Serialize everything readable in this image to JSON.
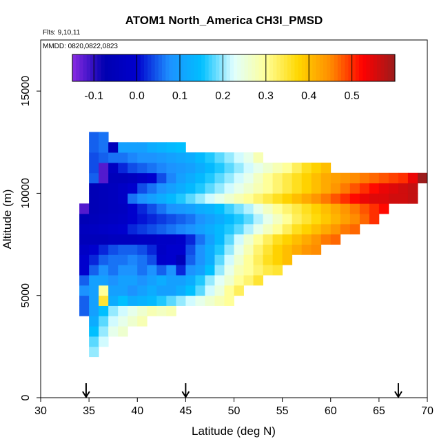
{
  "chart_data": {
    "type": "heatmap",
    "title": "ATOM1 North_America CH3I_PMSD",
    "subtitle_flights": "Flts: 9,10,11",
    "subtitle_dates": "MMDD: 0820,0822,0823",
    "xlabel": "Latitude (deg N)",
    "ylabel": "Altitude (m)",
    "xlim": [
      30,
      70
    ],
    "ylim": [
      0,
      17500
    ],
    "x_ticks": [
      "30",
      "35",
      "40",
      "45",
      "50",
      "55",
      "60",
      "65",
      "70"
    ],
    "y_ticks": [
      "0",
      "5000",
      "10000",
      "15000"
    ],
    "colorbar": {
      "range": [
        -0.15,
        0.6
      ],
      "tick_labels": [
        "-0.1",
        "0.0",
        "0.1",
        "0.2",
        "0.3",
        "0.4",
        "0.5"
      ],
      "tick_values": [
        -0.1,
        0.0,
        0.1,
        0.2,
        0.3,
        0.4,
        0.5
      ],
      "colors": [
        "#8a2be2",
        "#0000b0",
        "#0000cd",
        "#1e90ff",
        "#00bfff",
        "#e0ffff",
        "#ffff99",
        "#ffd700",
        "#ff8c00",
        "#ff0000",
        "#9b1c1c"
      ]
    },
    "arrow_latitudes": [
      34.7,
      45,
      67
    ],
    "cell_size": {
      "lat": 1,
      "alt": 500
    },
    "altitude_rows": [
      {
        "alt_min": 2000,
        "lat_start": 35,
        "values": [
          0.2
        ]
      },
      {
        "alt_min": 2500,
        "lat_start": 35,
        "values": [
          0.18,
          0.22
        ]
      },
      {
        "alt_min": 3000,
        "lat_start": 35,
        "values": [
          0.15,
          0.2,
          0.24,
          0.26
        ]
      },
      {
        "alt_min": 3500,
        "lat_start": 35,
        "values": [
          0.12,
          0.18,
          0.22,
          0.24,
          0.26,
          0.28
        ]
      },
      {
        "alt_min": 4000,
        "lat_start": 34,
        "values": [
          0.05,
          0.1,
          0.15,
          0.2,
          0.22,
          0.24,
          0.26,
          0.28,
          0.27,
          0.28
        ]
      },
      {
        "alt_min": 4500,
        "lat_start": 34,
        "values": [
          0.05,
          0.1,
          0.35,
          0.12,
          0.15,
          0.12,
          0.13,
          0.14,
          0.16,
          0.18,
          0.2,
          0.22,
          0.24,
          0.26,
          0.28,
          0.3
        ]
      },
      {
        "alt_min": 5000,
        "lat_start": 34,
        "values": [
          0.08,
          0.1,
          0.3,
          0.1,
          0.1,
          0.08,
          0.1,
          0.12,
          0.1,
          0.1,
          0.12,
          0.15,
          0.18,
          0.22,
          0.25,
          0.3,
          0.33
        ]
      },
      {
        "alt_min": 5500,
        "lat_start": 34,
        "values": [
          0.05,
          0.1,
          0.1,
          0.08,
          0.1,
          0.1,
          0.08,
          0.1,
          0.12,
          0.1,
          0.1,
          0.12,
          0.16,
          0.2,
          0.23,
          0.26,
          0.3,
          0.32,
          0.35
        ]
      },
      {
        "alt_min": 6000,
        "lat_start": 34,
        "values": [
          0.0,
          0.05,
          0.08,
          0.06,
          0.08,
          0.08,
          0.06,
          0.08,
          0.05,
          0.08,
          0.02,
          0.08,
          0.1,
          0.15,
          0.2,
          0.24,
          0.28,
          0.3,
          0.32,
          0.34,
          0.35
        ]
      },
      {
        "alt_min": 6500,
        "lat_start": 34,
        "values": [
          0.0,
          0.02,
          0.05,
          0.06,
          0.06,
          0.07,
          0.06,
          0.04,
          -0.01,
          0.0,
          -0.05,
          0.05,
          0.08,
          0.12,
          0.18,
          0.22,
          0.26,
          0.3,
          0.33,
          0.36,
          0.38,
          0.4
        ]
      },
      {
        "alt_min": 7000,
        "lat_start": 34,
        "values": [
          -0.02,
          0.0,
          0.02,
          0.04,
          0.05,
          0.05,
          0.04,
          0.02,
          -0.02,
          0.0,
          0.0,
          0.04,
          0.08,
          0.12,
          0.16,
          0.2,
          0.24,
          0.28,
          0.32,
          0.35,
          0.38,
          0.4,
          0.42,
          0.44,
          0.45
        ]
      },
      {
        "alt_min": 7500,
        "lat_start": 34,
        "values": [
          -0.05,
          -0.05,
          -0.05,
          -0.04,
          -0.04,
          -0.04,
          -0.03,
          -0.03,
          -0.02,
          -0.02,
          -0.01,
          0.02,
          0.06,
          0.1,
          0.14,
          0.18,
          0.22,
          0.26,
          0.3,
          0.33,
          0.36,
          0.38,
          0.4,
          0.42,
          0.44,
          0.46,
          0.47
        ]
      },
      {
        "alt_min": 8000,
        "lat_start": 34,
        "values": [
          -0.04,
          -0.03,
          -0.02,
          -0.01,
          0.0,
          0.02,
          0.03,
          0.04,
          0.05,
          0.06,
          0.07,
          0.08,
          0.1,
          0.12,
          0.14,
          0.16,
          0.18,
          0.21,
          0.24,
          0.27,
          0.3,
          0.33,
          0.36,
          0.38,
          0.4,
          0.42,
          0.44,
          0.46,
          0.47
        ]
      },
      {
        "alt_min": 8500,
        "lat_start": 34,
        "values": [
          -0.06,
          -0.05,
          -0.04,
          -0.03,
          -0.02,
          0.0,
          0.01,
          0.02,
          0.03,
          0.04,
          0.05,
          0.06,
          0.08,
          0.1,
          0.12,
          0.14,
          0.16,
          0.18,
          0.21,
          0.24,
          0.27,
          0.3,
          0.33,
          0.35,
          0.37,
          0.39,
          0.41,
          0.43,
          0.45,
          0.47,
          0.5
        ]
      },
      {
        "alt_min": 9000,
        "lat_start": 34,
        "values": [
          -0.12,
          -0.06,
          -0.05,
          -0.04,
          -0.03,
          0.0,
          0.02,
          0.04,
          0.06,
          0.08,
          0.09,
          0.1,
          0.12,
          0.13,
          0.15,
          0.17,
          0.19,
          0.21,
          0.24,
          0.27,
          0.3,
          0.32,
          0.34,
          0.36,
          0.38,
          0.4,
          0.42,
          0.44,
          0.46,
          0.48,
          0.5,
          0.52
        ]
      },
      {
        "alt_min": 9500,
        "lat_start": 35,
        "values": [
          -0.06,
          -0.05,
          -0.04,
          -0.02,
          0.06,
          0.08,
          0.1,
          0.12,
          0.14,
          0.16,
          0.18,
          0.2,
          0.22,
          0.24,
          0.26,
          0.28,
          0.3,
          0.32,
          0.34,
          0.36,
          0.38,
          0.4,
          0.42,
          0.44,
          0.46,
          0.48,
          0.5,
          0.52,
          0.54,
          0.55,
          0.55,
          0.56,
          0.56,
          0.57
        ]
      },
      {
        "alt_min": 10000,
        "lat_start": 35,
        "values": [
          -0.06,
          -0.05,
          -0.04,
          -0.02,
          0.0,
          0.04,
          0.06,
          0.08,
          0.1,
          0.12,
          0.14,
          0.16,
          0.18,
          0.2,
          0.22,
          0.24,
          0.26,
          0.28,
          0.3,
          0.32,
          0.34,
          0.36,
          0.38,
          0.4,
          0.42,
          0.44,
          0.46,
          0.48,
          0.5,
          0.52,
          0.54,
          0.55,
          0.56,
          0.57
        ]
      },
      {
        "alt_min": 10500,
        "lat_start": 35,
        "values": [
          0.05,
          -0.12,
          -0.05,
          -0.05,
          -0.04,
          -0.02,
          0.0,
          0.04,
          0.07,
          0.1,
          0.12,
          0.14,
          0.16,
          0.18,
          0.2,
          0.22,
          0.24,
          0.27,
          0.3,
          0.32,
          0.34,
          0.36,
          0.38,
          0.4,
          0.42,
          0.43,
          0.44,
          0.45,
          0.46,
          0.47,
          0.48,
          0.49,
          0.5,
          0.54,
          0.6
        ]
      },
      {
        "alt_min": 11000,
        "lat_start": 35,
        "values": [
          0.04,
          -0.12,
          -0.03,
          0.02,
          0.04,
          0.05,
          0.06,
          0.07,
          0.08,
          0.09,
          0.1,
          0.12,
          0.14,
          0.16,
          0.18,
          0.2,
          0.22,
          0.24,
          0.26,
          0.28,
          0.3,
          0.33,
          0.36,
          0.38,
          0.4
        ]
      },
      {
        "alt_min": 11500,
        "lat_start": 35,
        "values": [
          0.04,
          0.05,
          0.06,
          0.06,
          0.07,
          0.08,
          0.08,
          0.09,
          0.1,
          0.11,
          0.12,
          0.14,
          0.16,
          0.18,
          0.2,
          0.22,
          0.24,
          0.28
        ]
      },
      {
        "alt_min": 12000,
        "lat_start": 35,
        "values": [
          0.05,
          0.06,
          -0.05,
          0.1,
          0.1,
          0.1,
          0.12,
          0.13,
          0.14,
          0.15
        ]
      },
      {
        "alt_min": 12500,
        "lat_start": 35,
        "values": [
          0.05,
          0.06
        ]
      }
    ]
  }
}
